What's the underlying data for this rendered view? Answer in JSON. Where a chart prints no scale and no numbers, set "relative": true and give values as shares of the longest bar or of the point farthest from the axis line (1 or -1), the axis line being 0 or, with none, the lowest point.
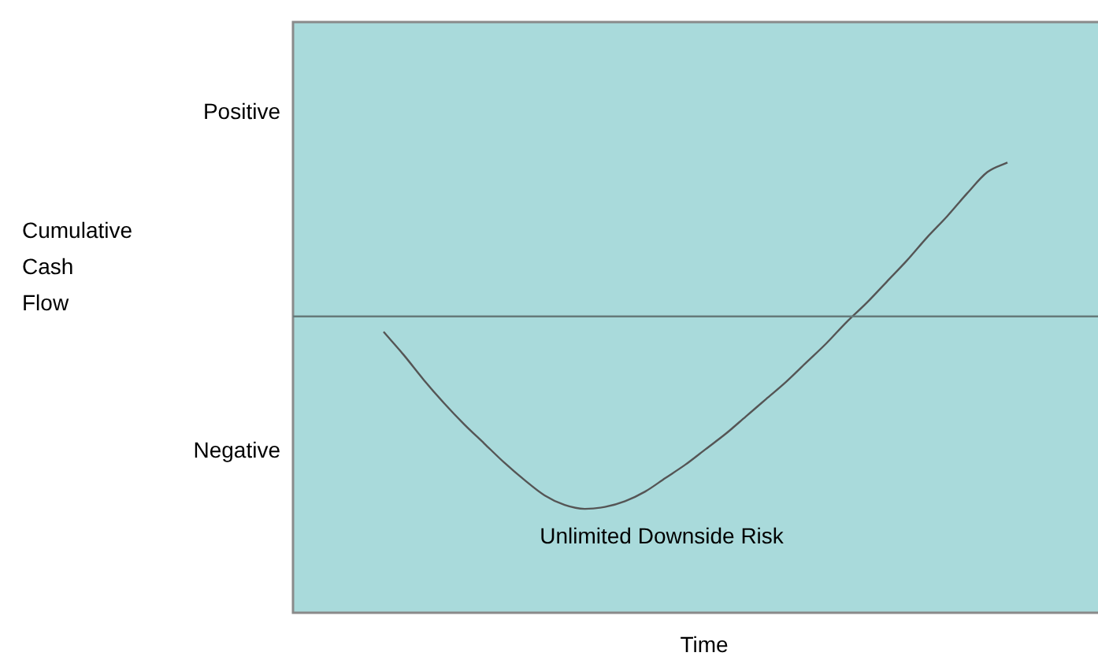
{
  "chart_data": {
    "type": "line",
    "relative": true,
    "annotations": [
      "Positive",
      "Negative",
      "Unlimited Downside Risk",
      "Cumulative Cash Flow",
      "Time"
    ],
    "categories": [
      null,
      null,
      null,
      null,
      null,
      null,
      null,
      null,
      null,
      null,
      null,
      null,
      null,
      null,
      null,
      null,
      null,
      null,
      null,
      null,
      null,
      null,
      null,
      null,
      null,
      null,
      null,
      null,
      null,
      null,
      null,
      null,
      null,
      null,
      null,
      null,
      null,
      null,
      null,
      null
    ],
    "series": [
      {
        "color": "#555555",
        "values": [
          null,
          null,
          null,
          null,
          -0.08,
          -0.2,
          -0.33,
          -0.45,
          -0.56,
          -0.66,
          -0.76,
          -0.85,
          -0.93,
          -0.98,
          -1,
          -0.99,
          -0.96,
          -0.91,
          -0.84,
          -0.77,
          -0.69,
          -0.61,
          -0.52,
          -0.43,
          -0.34,
          -0.24,
          -0.14,
          -0.03,
          0.07,
          0.18,
          0.29,
          0.41,
          0.52,
          0.64,
          0.75,
          0.8,
          null,
          null,
          null,
          null
        ]
      }
    ],
    "grid": false,
    "legend": false,
    "marker": "none",
    "line_style": "solid"
  }
}
